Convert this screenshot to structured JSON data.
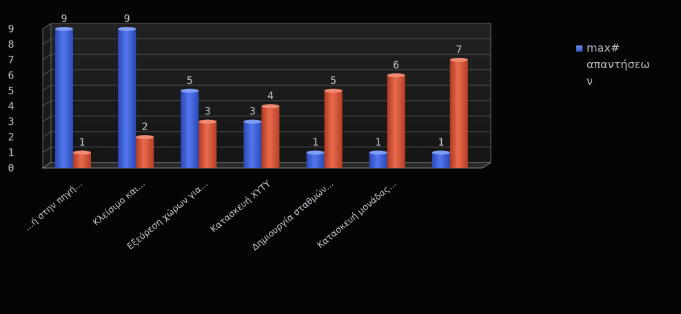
{
  "chart_data": {
    "type": "bar",
    "categories": [
      "...ή στην πηγή...",
      "Κλείσιμο και...",
      "Εξεύρεση χώρων για...",
      "Κατασκευή ΧΥΤΥ",
      "Δημιουργία σταθμών...",
      "Κατασκευή μονάδας...",
      ""
    ],
    "series": [
      {
        "name": "max#\nαπαντήσεω\nν",
        "values": [
          9,
          9,
          5,
          3,
          1,
          1,
          1
        ]
      },
      {
        "name": "",
        "values": [
          1,
          2,
          3,
          4,
          5,
          6,
          7
        ]
      }
    ],
    "yticks": [
      "0",
      "1",
      "2",
      "3",
      "4",
      "5",
      "6",
      "7",
      "8",
      "9"
    ],
    "ylim": [
      0,
      9
    ],
    "title": "",
    "xlabel": "",
    "ylabel": "",
    "legend_position": "right",
    "grid": true,
    "colors": {
      "series1": "#3f63d8",
      "series2": "#d9533a",
      "text": "#b8bcc8",
      "background": "#050505"
    }
  }
}
